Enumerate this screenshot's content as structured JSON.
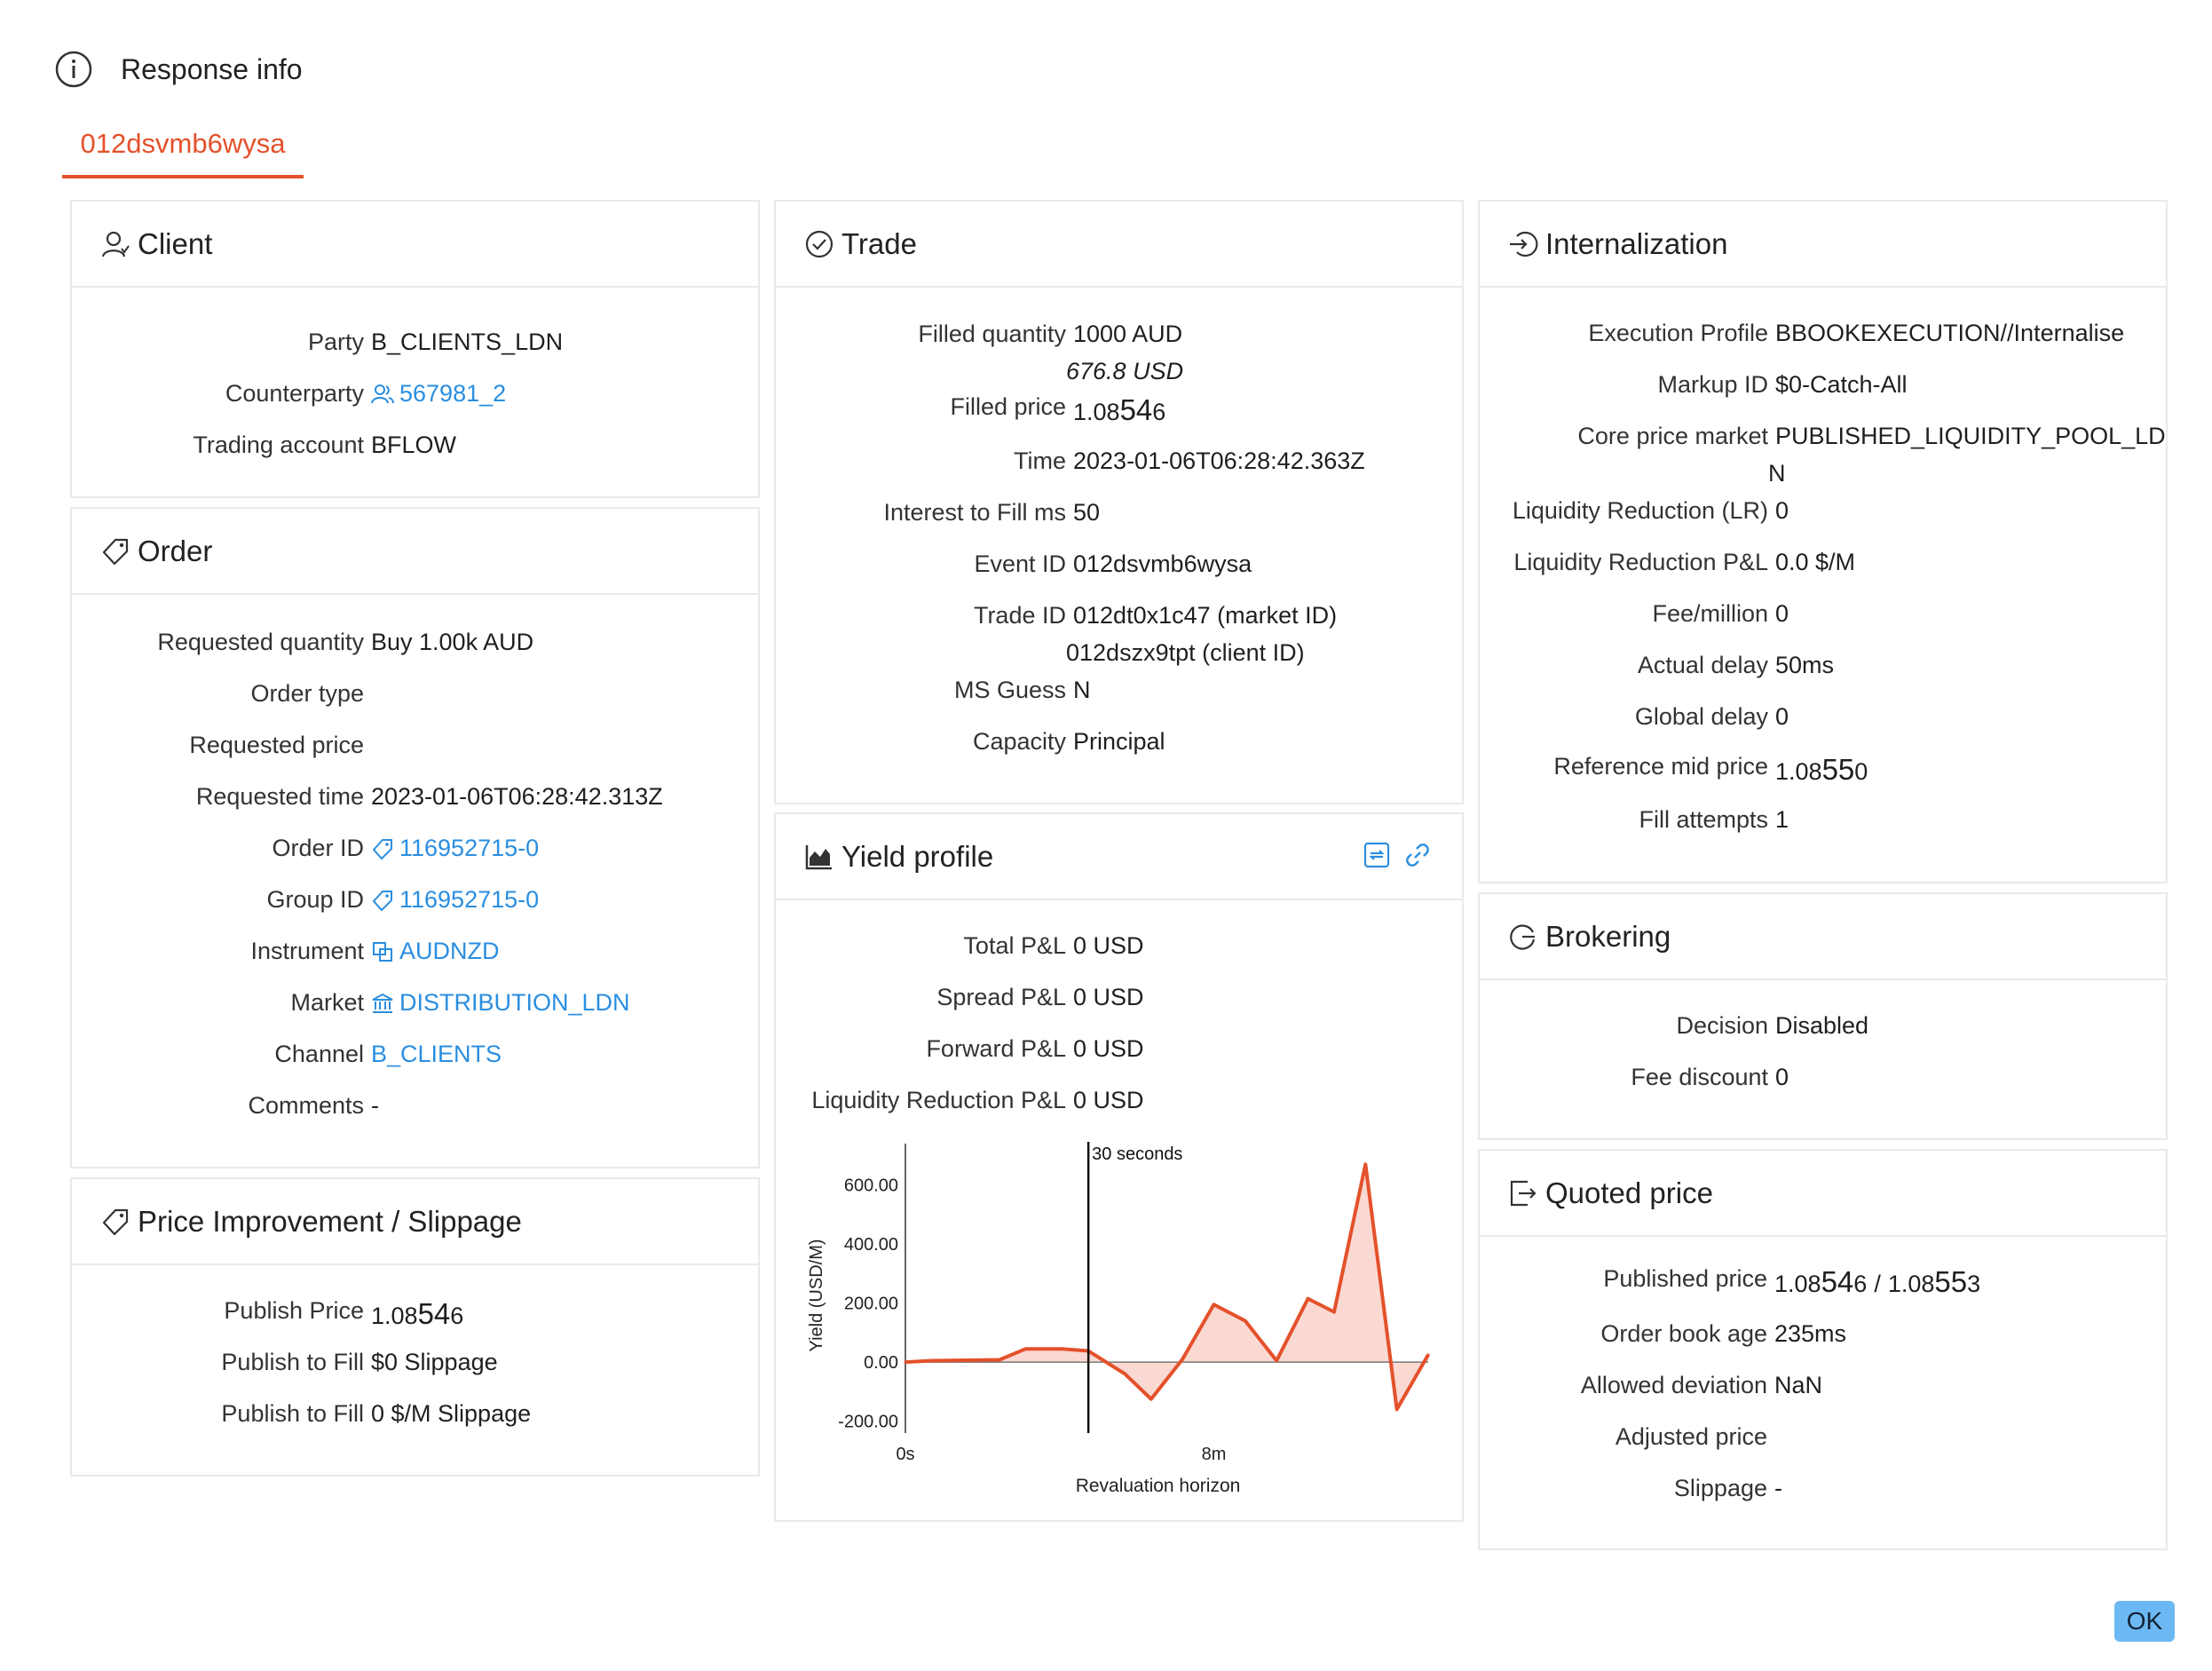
{
  "header": {
    "title": "Response info",
    "tab": "012dsvmb6wysa"
  },
  "client": {
    "title": "Client",
    "rows": [
      {
        "k": "Party",
        "v": "B_CLIENTS_LDN"
      },
      {
        "k": "Counterparty",
        "v": "567981_2"
      },
      {
        "k": "Trading account",
        "v": "BFLOW"
      }
    ]
  },
  "order": {
    "title": "Order",
    "rows": [
      {
        "k": "Requested quantity",
        "v": "Buy 1.00k AUD"
      },
      {
        "k": "Order type",
        "v": ""
      },
      {
        "k": "Requested price",
        "v": ""
      },
      {
        "k": "Requested time",
        "v": "2023-01-06T06:28:42.313Z"
      },
      {
        "k": "Order ID",
        "v": "116952715-0"
      },
      {
        "k": "Group ID",
        "v": "116952715-0"
      },
      {
        "k": "Instrument",
        "v": "AUDNZD"
      },
      {
        "k": "Market",
        "v": "DISTRIBUTION_LDN"
      },
      {
        "k": "Channel",
        "v": "B_CLIENTS"
      },
      {
        "k": "Comments",
        "v": "-"
      }
    ]
  },
  "slippage": {
    "title": "Price Improvement / Slippage",
    "rows": [
      {
        "k": "Publish Price",
        "v_a": "1.08",
        "v_b": "54",
        "v_c": "6"
      },
      {
        "k": "Publish to Fill",
        "v": "$0 Slippage"
      },
      {
        "k": "Publish to Fill",
        "v": "0 $/M Slippage"
      }
    ]
  },
  "trade": {
    "title": "Trade",
    "filled_qty_k": "Filled quantity",
    "filled_qty_v": "1000 AUD",
    "filled_qty_v2": "676.8 USD",
    "filled_price_k": "Filled price",
    "filled_price_a": "1.08",
    "filled_price_b": "54",
    "filled_price_c": "6",
    "time_k": "Time",
    "time_v": "2023-01-06T06:28:42.363Z",
    "itf_k": "Interest to Fill ms",
    "itf_v": "50",
    "event_k": "Event ID",
    "event_v": "012dsvmb6wysa",
    "tradeid_k": "Trade ID",
    "tradeid_v": "012dt0x1c47 (market ID)",
    "tradeid_v2": "012dszx9tpt (client ID)",
    "ms_k": "MS Guess",
    "ms_v": "N",
    "cap_k": "Capacity",
    "cap_v": "Principal"
  },
  "yield": {
    "title": "Yield profile",
    "rows": [
      {
        "k": "Total P&L",
        "v": "0 USD"
      },
      {
        "k": "Spread P&L",
        "v": "0 USD"
      },
      {
        "k": "Forward P&L",
        "v": "0 USD"
      },
      {
        "k": "Liquidity Reduction P&L",
        "v": "0 USD"
      }
    ]
  },
  "chart_data": {
    "type": "area",
    "title": "",
    "xlabel": "Revaluation horizon",
    "ylabel": "Yield (USD/M)",
    "x_ticks": [
      "0s",
      "8m"
    ],
    "y_ticks": [
      600,
      400,
      200,
      0,
      -200
    ],
    "y_tick_labels": [
      "600.00",
      "400.00",
      "200.00",
      "0.00",
      "-200.00"
    ],
    "ylim": [
      -240,
      740
    ],
    "marker": {
      "label": "30 seconds",
      "x": 0.35
    },
    "series": [
      {
        "values": [
          {
            "x": 0.0,
            "y": 0
          },
          {
            "x": 0.05,
            "y": 5
          },
          {
            "x": 0.18,
            "y": 8
          },
          {
            "x": 0.23,
            "y": 45
          },
          {
            "x": 0.3,
            "y": 45
          },
          {
            "x": 0.35,
            "y": 38
          },
          {
            "x": 0.42,
            "y": -40
          },
          {
            "x": 0.47,
            "y": -125
          },
          {
            "x": 0.53,
            "y": 10
          },
          {
            "x": 0.59,
            "y": 195
          },
          {
            "x": 0.65,
            "y": 140
          },
          {
            "x": 0.71,
            "y": 5
          },
          {
            "x": 0.77,
            "y": 215
          },
          {
            "x": 0.82,
            "y": 170
          },
          {
            "x": 0.88,
            "y": 670
          },
          {
            "x": 0.94,
            "y": -160
          },
          {
            "x": 1.0,
            "y": 25
          }
        ]
      }
    ],
    "line_color": "#e4512b",
    "fill_color": "#fbd9d3",
    "grid": false
  },
  "internalization": {
    "title": "Internalization",
    "rows": [
      {
        "k": "Execution Profile",
        "v": "BBOOKEXECUTION//Internalise"
      },
      {
        "k": "Markup ID",
        "v": "$0-Catch-All"
      },
      {
        "k": "Core price market",
        "v": "PUBLISHED_LIQUIDITY_POOL_LD",
        "v2": "N"
      },
      {
        "k": "Liquidity Reduction (LR)",
        "v": "0"
      },
      {
        "k": "Liquidity Reduction P&L",
        "v": "0.0 $/M"
      },
      {
        "k": "Fee/million",
        "v": "0"
      },
      {
        "k": "Actual delay",
        "v": "50ms"
      },
      {
        "k": "Global delay",
        "v": "0"
      },
      {
        "k": "Reference mid price",
        "v_a": "1.08",
        "v_b": "55",
        "v_c": "0"
      },
      {
        "k": "Fill attempts",
        "v": "1"
      }
    ]
  },
  "brokering": {
    "title": "Brokering",
    "rows": [
      {
        "k": "Decision",
        "v": "Disabled"
      },
      {
        "k": "Fee discount",
        "v": "0"
      }
    ]
  },
  "quoted": {
    "title": "Quoted price",
    "pub_k": "Published price",
    "pub_a": "1.08",
    "pub_b": "54",
    "pub_c": "6",
    "pub_sep": "/",
    "pub_d": "1.08",
    "pub_e": "55",
    "pub_f": "3",
    "rows": [
      {
        "k": "Order book age",
        "v": "235ms"
      },
      {
        "k": "Allowed deviation",
        "v": "NaN"
      },
      {
        "k": "Adjusted price",
        "v": ""
      },
      {
        "k": "Slippage",
        "v": "-"
      }
    ]
  },
  "footer": {
    "ok_label": "OK"
  },
  "colors": {
    "accent": "#e4512b",
    "link": "#2a8ee0",
    "border": "#e9e9e9",
    "ok_bg": "#6cb8f2"
  }
}
